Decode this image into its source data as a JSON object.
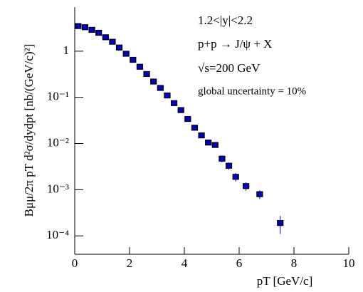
{
  "chart_data": {
    "type": "scatter",
    "annotations": [
      "1.2<|y|<2.2",
      "p+p → J/ψ + X",
      "√s=200 GeV",
      "global uncertainty = 10%"
    ],
    "xlabel": "pT  [GeV/c]",
    "ylabel": "Bμμ/2π pT d²σ/dydpt  [nb/(GeV/c)²]",
    "log_y": true,
    "xlim": [
      0,
      10
    ],
    "xticks": [
      0,
      2,
      4,
      6,
      8,
      10
    ],
    "ylim": [
      4e-05,
      9
    ],
    "yticks": [
      {
        "value": 0.0001,
        "label": "10⁻⁴"
      },
      {
        "value": 0.001,
        "label": "10⁻³"
      },
      {
        "value": 0.01,
        "label": "10⁻²"
      },
      {
        "value": 0.1,
        "label": "10⁻¹"
      },
      1
    ],
    "color": "#0000cc",
    "x": [
      0.125,
      0.375,
      0.625,
      0.875,
      1.125,
      1.375,
      1.625,
      1.875,
      2.125,
      2.375,
      2.625,
      2.875,
      3.125,
      3.375,
      3.625,
      3.875,
      4.125,
      4.375,
      4.625,
      4.875,
      5.125,
      5.375,
      5.625,
      5.875,
      6.25,
      6.75,
      7.5
    ],
    "values": [
      3.5,
      3.3,
      2.9,
      2.5,
      2.0,
      1.6,
      1.2,
      0.88,
      0.65,
      0.46,
      0.32,
      0.22,
      0.16,
      0.11,
      0.075,
      0.053,
      0.034,
      0.022,
      0.015,
      0.0105,
      0.0093,
      0.0047,
      0.0033,
      0.0019,
      0.0012,
      0.0008,
      0.00019
    ],
    "errors": [
      0.1,
      0.1,
      0.09,
      0.08,
      0.06,
      0.05,
      0.04,
      0.03,
      0.02,
      0.015,
      0.01,
      0.007,
      0.005,
      0.004,
      0.003,
      0.002,
      0.0015,
      0.001,
      0.0008,
      0.0006,
      0.0006,
      0.0008,
      0.0006,
      0.0004,
      0.00025,
      0.00017,
      8e-05
    ]
  }
}
